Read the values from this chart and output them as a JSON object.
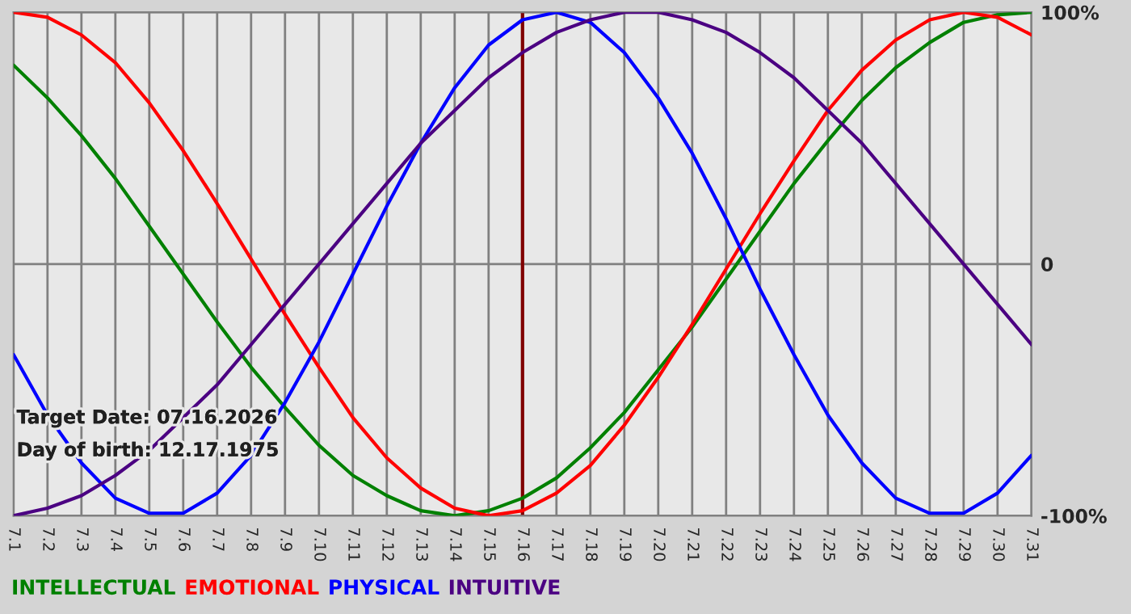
{
  "chart_data": {
    "type": "line",
    "categories": [
      "7.1",
      "7.2",
      "7.3",
      "7.4",
      "7.5",
      "7.6",
      "7.7",
      "7.8",
      "7.9",
      "7.10",
      "7.11",
      "7.12",
      "7.13",
      "7.14",
      "7.15",
      "7.16",
      "7.17",
      "7.18",
      "7.19",
      "7.20",
      "7.21",
      "7.22",
      "7.23",
      "7.24",
      "7.25",
      "7.26",
      "7.27",
      "7.28",
      "7.29",
      "7.30",
      "7.31"
    ],
    "series": [
      {
        "name": "INTELLECTUAL",
        "color": "#008000",
        "values": [
          79,
          66,
          51,
          34,
          15,
          -4,
          -23,
          -41,
          -57,
          -72,
          -84,
          -92,
          -98,
          -100,
          -98,
          -93,
          -85,
          -73,
          -59,
          -42,
          -25,
          -6,
          13,
          32,
          49,
          65,
          78,
          88,
          96,
          99,
          100
        ]
      },
      {
        "name": "EMOTIONAL",
        "color": "#ff0000",
        "values": [
          100,
          98,
          91,
          80,
          64,
          45,
          24,
          2,
          -20,
          -41,
          -61,
          -77,
          -89,
          -97,
          -100,
          -98,
          -91,
          -80,
          -64,
          -45,
          -24,
          -2,
          20,
          41,
          61,
          77,
          89,
          97,
          100,
          98,
          91
        ]
      },
      {
        "name": "PHYSICAL",
        "color": "#0000ff",
        "values": [
          -36,
          -60,
          -79,
          -93,
          -99,
          -99,
          -91,
          -76,
          -55,
          -31,
          -4,
          23,
          48,
          70,
          87,
          97,
          100,
          96,
          84,
          66,
          44,
          18,
          -10,
          -36,
          -60,
          -79,
          -93,
          -99,
          -99,
          -91,
          -76
        ]
      },
      {
        "name": "INTUITIVE",
        "color": "#4b0082",
        "values": [
          -100,
          -97,
          -92,
          -84,
          -74,
          -61,
          -48,
          -32,
          -16,
          0,
          16,
          32,
          48,
          61,
          74,
          84,
          92,
          97,
          100,
          100,
          97,
          92,
          84,
          74,
          61,
          48,
          32,
          16,
          0,
          -16,
          -32
        ]
      }
    ],
    "ylim": [
      -100,
      100
    ],
    "yticks": [
      {
        "value": 100,
        "label": "100%"
      },
      0,
      {
        "value": -100,
        "label": "-100%"
      }
    ],
    "grid": true,
    "legend": "bottom",
    "ref_lines": [
      {
        "axis": "x",
        "value": "7.16",
        "color": "#800000"
      }
    ],
    "annotations": [
      "Target Date: 07.16.2026",
      "Day of birth: 12.17.1975"
    ]
  }
}
